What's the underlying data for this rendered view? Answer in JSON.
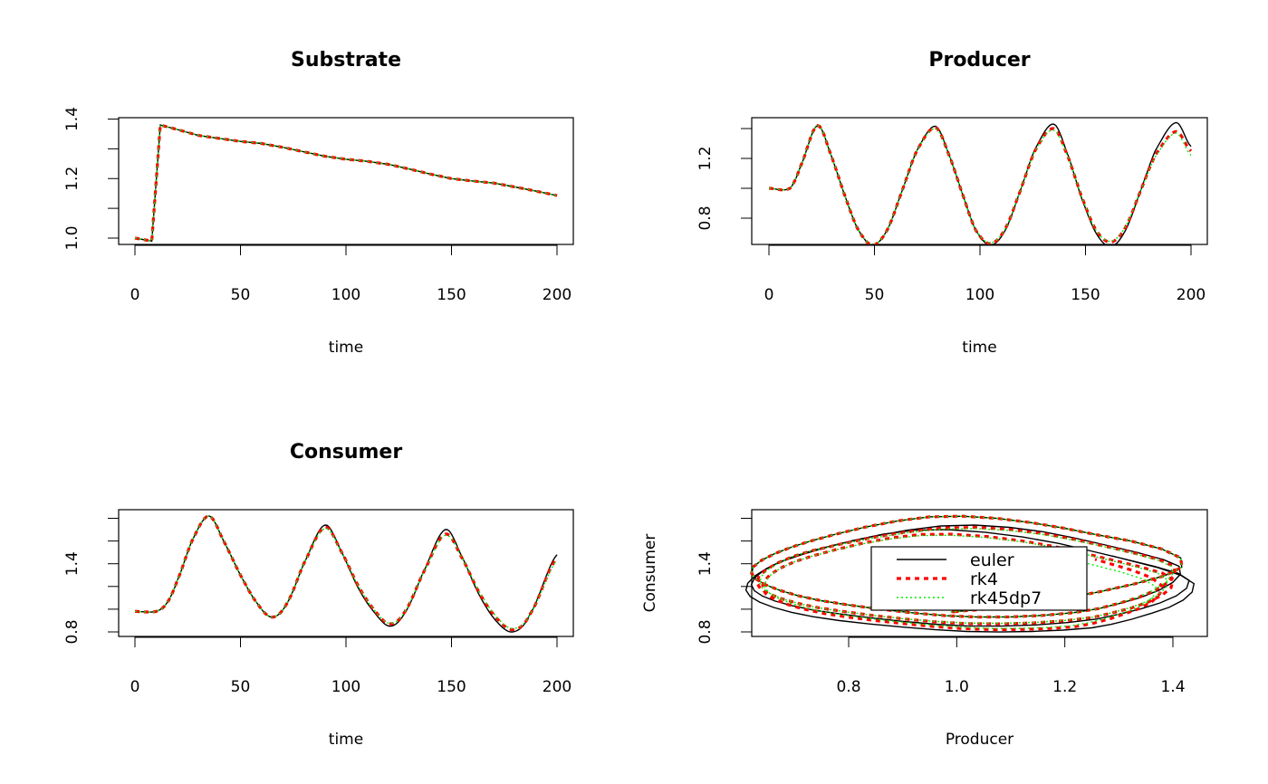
{
  "chart_data": [
    {
      "type": "line",
      "title": "Substrate",
      "xlabel": "time",
      "ylabel": "",
      "xlim": [
        0,
        200
      ],
      "ylim": [
        0.98,
        1.4
      ],
      "xticks": [
        "0",
        "50",
        "100",
        "150",
        "200"
      ],
      "yticks": [
        1.0,
        1.1,
        1.2,
        1.3,
        1.4
      ],
      "ytick_labels": [
        "1.0",
        "1.2",
        "1.4"
      ],
      "series": [
        {
          "name": "euler",
          "t": [
            0,
            8,
            12,
            20,
            30,
            40,
            50,
            60,
            70,
            80,
            90,
            100,
            110,
            120,
            130,
            140,
            150,
            160,
            170,
            180,
            190,
            200
          ],
          "values": [
            1.0,
            0.99,
            1.38,
            1.365,
            1.345,
            1.335,
            1.325,
            1.318,
            1.305,
            1.29,
            1.275,
            1.265,
            1.258,
            1.248,
            1.232,
            1.215,
            1.2,
            1.192,
            1.185,
            1.172,
            1.158,
            1.143
          ]
        },
        {
          "name": "rk4",
          "t": [
            0,
            8,
            12,
            20,
            30,
            40,
            50,
            60,
            70,
            80,
            90,
            100,
            110,
            120,
            130,
            140,
            150,
            160,
            170,
            180,
            190,
            200
          ],
          "values": [
            1.0,
            0.99,
            1.38,
            1.365,
            1.345,
            1.335,
            1.325,
            1.318,
            1.305,
            1.29,
            1.275,
            1.265,
            1.258,
            1.248,
            1.232,
            1.215,
            1.2,
            1.192,
            1.185,
            1.172,
            1.158,
            1.143
          ]
        },
        {
          "name": "rk45dp7",
          "t": [
            0,
            8,
            12,
            20,
            30,
            40,
            50,
            60,
            70,
            80,
            90,
            100,
            110,
            120,
            130,
            140,
            150,
            160,
            170,
            180,
            190,
            200
          ],
          "values": [
            1.0,
            0.99,
            1.38,
            1.365,
            1.345,
            1.335,
            1.325,
            1.318,
            1.305,
            1.29,
            1.275,
            1.265,
            1.258,
            1.248,
            1.232,
            1.215,
            1.2,
            1.192,
            1.185,
            1.172,
            1.158,
            1.143
          ]
        }
      ]
    },
    {
      "type": "line",
      "title": "Producer",
      "xlabel": "time",
      "ylabel": "",
      "xlim": [
        0,
        200
      ],
      "ylim": [
        0.6,
        1.44
      ],
      "xticks": [
        "0",
        "50",
        "100",
        "150",
        "200"
      ],
      "yticks": [
        0.8,
        1.0,
        1.2,
        1.4
      ],
      "ytick_labels": [
        "0.8",
        "1.2"
      ],
      "series": [
        {
          "name": "euler",
          "t": [
            0,
            10,
            15,
            23,
            30,
            36,
            42,
            49,
            56,
            63,
            70,
            79,
            86,
            92,
            98,
            105,
            112,
            119,
            126,
            135,
            142,
            148,
            155,
            162,
            169,
            176,
            183,
            193,
            200
          ],
          "values": [
            1.0,
            1.0,
            1.15,
            1.42,
            1.2,
            0.95,
            0.73,
            0.62,
            0.72,
            0.98,
            1.25,
            1.415,
            1.2,
            0.95,
            0.72,
            0.62,
            0.72,
            0.98,
            1.26,
            1.43,
            1.21,
            0.94,
            0.7,
            0.61,
            0.72,
            0.98,
            1.25,
            1.44,
            1.28
          ]
        },
        {
          "name": "rk4",
          "t": [
            0,
            10,
            15,
            23,
            30,
            36,
            42,
            49,
            56,
            63,
            70,
            79,
            86,
            92,
            98,
            105,
            112,
            119,
            126,
            135,
            142,
            148,
            155,
            162,
            169,
            176,
            183,
            193,
            200
          ],
          "values": [
            1.0,
            1.0,
            1.15,
            1.42,
            1.2,
            0.95,
            0.73,
            0.62,
            0.72,
            0.98,
            1.25,
            1.405,
            1.2,
            0.95,
            0.72,
            0.63,
            0.73,
            0.98,
            1.25,
            1.4,
            1.2,
            0.95,
            0.72,
            0.64,
            0.74,
            0.98,
            1.22,
            1.38,
            1.25
          ]
        },
        {
          "name": "rk45dp7",
          "t": [
            0,
            10,
            15,
            23,
            30,
            36,
            42,
            49,
            56,
            63,
            70,
            79,
            86,
            92,
            98,
            105,
            112,
            119,
            126,
            135,
            142,
            148,
            155,
            162,
            169,
            176,
            183,
            193,
            200
          ],
          "values": [
            1.0,
            1.0,
            1.15,
            1.42,
            1.2,
            0.95,
            0.73,
            0.62,
            0.72,
            0.98,
            1.25,
            1.4,
            1.2,
            0.95,
            0.72,
            0.635,
            0.73,
            0.98,
            1.25,
            1.39,
            1.2,
            0.95,
            0.72,
            0.645,
            0.745,
            0.98,
            1.21,
            1.37,
            1.22
          ]
        }
      ]
    },
    {
      "type": "line",
      "title": "Consumer",
      "xlabel": "time",
      "ylabel": "",
      "xlim": [
        0,
        200
      ],
      "ylim": [
        0.78,
        1.86
      ],
      "xticks": [
        "0",
        "50",
        "100",
        "150",
        "200"
      ],
      "yticks": [
        0.8,
        1.0,
        1.2,
        1.4,
        1.6,
        1.8
      ],
      "ytick_labels": [
        "0.8",
        "1.4"
      ],
      "series": [
        {
          "name": "euler",
          "t": [
            0,
            10,
            15,
            20,
            27,
            35,
            42,
            50,
            58,
            65,
            72,
            80,
            90,
            98,
            106,
            114,
            121,
            128,
            136,
            147,
            155,
            163,
            171,
            179,
            187,
            200
          ],
          "values": [
            0.98,
            0.98,
            1.05,
            1.25,
            1.6,
            1.82,
            1.6,
            1.3,
            1.05,
            0.93,
            1.05,
            1.4,
            1.74,
            1.5,
            1.18,
            0.96,
            0.85,
            0.97,
            1.3,
            1.7,
            1.46,
            1.13,
            0.9,
            0.8,
            0.95,
            1.48
          ]
        },
        {
          "name": "rk4",
          "t": [
            0,
            10,
            15,
            20,
            27,
            35,
            42,
            50,
            58,
            65,
            72,
            80,
            90,
            98,
            106,
            114,
            121,
            128,
            136,
            147,
            155,
            163,
            171,
            179,
            187,
            200
          ],
          "values": [
            0.98,
            0.98,
            1.05,
            1.25,
            1.6,
            1.82,
            1.6,
            1.3,
            1.05,
            0.93,
            1.05,
            1.4,
            1.72,
            1.5,
            1.2,
            0.98,
            0.87,
            0.98,
            1.3,
            1.66,
            1.45,
            1.15,
            0.93,
            0.82,
            0.95,
            1.45
          ]
        },
        {
          "name": "rk45dp7",
          "t": [
            0,
            10,
            15,
            20,
            27,
            35,
            42,
            50,
            58,
            65,
            72,
            80,
            90,
            98,
            106,
            114,
            121,
            128,
            136,
            147,
            155,
            163,
            171,
            179,
            187,
            200
          ],
          "values": [
            0.98,
            0.98,
            1.05,
            1.25,
            1.6,
            1.82,
            1.6,
            1.3,
            1.05,
            0.93,
            1.05,
            1.4,
            1.71,
            1.5,
            1.2,
            0.98,
            0.875,
            0.98,
            1.3,
            1.65,
            1.45,
            1.16,
            0.94,
            0.83,
            0.95,
            1.43
          ]
        }
      ]
    },
    {
      "type": "line",
      "title": "",
      "xlabel": "Producer",
      "ylabel": "Consumer",
      "xlim": [
        0.6,
        1.44
      ],
      "ylim": [
        0.78,
        1.86
      ],
      "xticks": [
        "0.8",
        "1.0",
        "1.2",
        "1.4"
      ],
      "yticks": [
        0.8,
        1.0,
        1.2,
        1.4,
        1.6,
        1.8
      ],
      "ytick_labels": [
        "0.8",
        "1.4"
      ],
      "derived_from": "Producer vs Consumer series above",
      "legend": {
        "position": "center",
        "entries": [
          "euler",
          "rk4",
          "rk45dp7"
        ]
      }
    }
  ],
  "colors": {
    "euler": "#000000",
    "rk4": "#FF0000",
    "rk45dp7": "#00EE00"
  }
}
